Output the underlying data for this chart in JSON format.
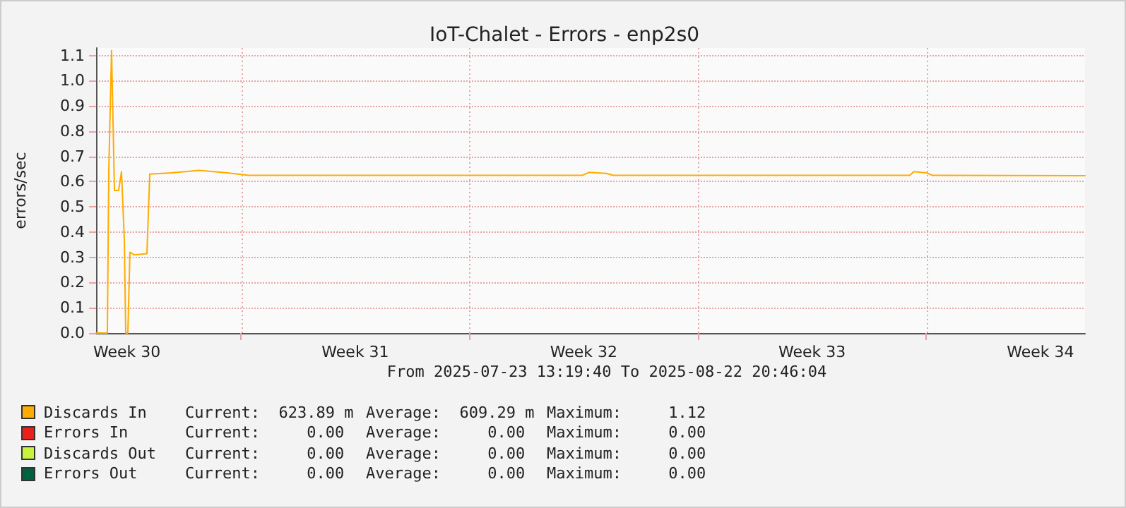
{
  "chart_data": {
    "type": "line",
    "title": "IoT-Chalet - Errors - enp2s0",
    "ylabel": "errors/sec",
    "xlim": [
      "2025-07-23T13:19",
      "2025-08-22T20:46"
    ],
    "xticks": [
      {
        "value": "2025-07-24T12:00",
        "label": "Week 30"
      },
      {
        "value": "2025-07-28T00:00",
        "label": null
      },
      {
        "value": "2025-07-31T12:00",
        "label": "Week 31"
      },
      {
        "value": "2025-08-04T00:00",
        "label": null
      },
      {
        "value": "2025-08-07T12:00",
        "label": "Week 32"
      },
      {
        "value": "2025-08-11T00:00",
        "label": null
      },
      {
        "value": "2025-08-14T12:00",
        "label": "Week 33"
      },
      {
        "value": "2025-08-18T00:00",
        "label": null
      },
      {
        "value": "2025-08-21T12:00",
        "label": "Week 34"
      }
    ],
    "ylim": [
      0,
      1.13
    ],
    "yticks": [
      {
        "value": 0,
        "label": "0.0"
      },
      0.1,
      0.2,
      0.3,
      0.4,
      0.5,
      0.6,
      0.7,
      0.8,
      0.9,
      {
        "value": 1,
        "label": "1.0"
      },
      1.1
    ],
    "x": [
      "2025-07-23T13:19",
      "2025-07-23T21:37",
      "2025-07-23T22:40",
      "2025-07-24T00:43",
      "2025-07-24T02:50",
      "2025-07-24T05:55",
      "2025-07-24T08:01",
      "2025-07-24T10:06",
      "2025-07-24T11:08",
      "2025-07-24T12:42",
      "2025-07-24T14:14",
      "2025-07-24T17:22",
      "2025-07-25T02:43",
      "2025-07-25T04:48",
      "2025-07-25T20:23",
      "2025-07-26T17:10",
      "2025-07-27T13:57",
      "2025-07-28T05:31",
      "2025-08-02T15:25",
      "2025-08-07T10:50",
      "2025-08-07T16:00",
      "2025-08-08T04:30",
      "2025-08-08T09:42",
      "2025-08-12T07:12",
      "2025-08-17T11:49",
      "2025-08-17T14:55",
      "2025-08-18T00:22",
      "2025-08-18T04:31",
      "2025-08-22T20:46"
    ],
    "series": [
      {
        "name": "Discards In",
        "color": "#ffab00",
        "values": [
          0,
          0,
          0.64,
          1.12,
          0.565,
          0.565,
          0.64,
          0.37,
          0,
          0,
          0.32,
          0.31,
          0.315,
          0.63,
          0.635,
          0.645,
          0.635,
          0.625,
          0.625,
          0.625,
          0.637,
          0.633,
          0.625,
          0.625,
          0.625,
          0.64,
          0.635,
          0.625,
          0.624
        ]
      },
      {
        "name": "Errors In",
        "color": "#e8211d",
        "values": [
          null,
          null,
          null,
          null,
          null,
          null,
          null,
          null,
          null,
          null,
          null,
          null,
          null,
          null,
          null,
          null,
          null,
          null,
          null,
          null,
          null,
          null,
          null,
          null,
          null,
          null,
          null,
          null,
          null
        ]
      },
      {
        "name": "Discards Out",
        "color": "#c8f23c",
        "values": [
          null,
          null,
          null,
          null,
          null,
          null,
          null,
          null,
          null,
          null,
          null,
          null,
          null,
          null,
          null,
          null,
          null,
          null,
          null,
          null,
          null,
          null,
          null,
          null,
          null,
          null,
          null,
          null,
          null
        ]
      },
      {
        "name": "Errors Out",
        "color": "#00613f",
        "values": [
          null,
          null,
          null,
          null,
          null,
          null,
          null,
          null,
          null,
          null,
          null,
          null,
          null,
          null,
          null,
          null,
          null,
          null,
          null,
          null,
          null,
          null,
          null,
          null,
          null,
          null,
          null,
          null,
          null
        ]
      }
    ],
    "annotations": [
      "From 2025-07-23 13:19:40 To 2025-08-22 20:46:04",
      "Current:  623.89 m",
      "Average:  609.29 m",
      "Maximum:     1.12",
      "Current:     0.00",
      "Average:     0.00",
      "Maximum:     0.00",
      "Current:     0.00",
      "Average:     0.00",
      "Maximum:     0.00",
      "Current:     0.00",
      "Average:     0.00",
      "Maximum:     0.00"
    ],
    "grid": true,
    "legend": "bottom",
    "marker": "none",
    "line_style": "solid"
  }
}
